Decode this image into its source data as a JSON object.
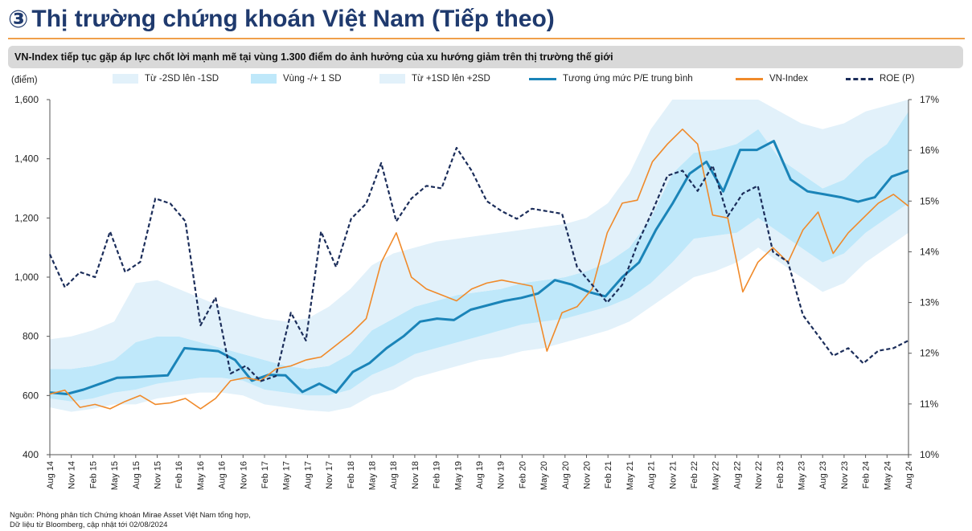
{
  "header": {
    "number": "③",
    "title": "Thị trường chứng khoán Việt Nam (Tiếp theo)",
    "subtitle": "VN-Index tiếp tục gặp áp lực chốt lời mạnh mẽ tại vùng 1.300 điểm do ảnh hưởng của xu hướng giảm trên thị trường thế giới"
  },
  "chart_data": {
    "type": "line",
    "unit_label": "(điểm)",
    "left_axis": {
      "range": [
        400,
        1600
      ],
      "ticks": [
        "1,600",
        "1,400",
        "1,200",
        "1,000",
        "800",
        "600",
        "400"
      ]
    },
    "right_axis": {
      "range": [
        10,
        17
      ],
      "ticks": [
        "17%",
        "16%",
        "15%",
        "14%",
        "13%",
        "12%",
        "11%",
        "10%"
      ]
    },
    "x_labels": [
      "Aug 14",
      "Nov 14",
      "Feb 15",
      "May 15",
      "Aug 15",
      "Nov 15",
      "Feb 16",
      "May 16",
      "Aug 16",
      "Nov 16",
      "Feb 17",
      "May 17",
      "Aug 17",
      "Nov 17",
      "Feb 18",
      "May 18",
      "Aug 18",
      "Nov 18",
      "Feb 19",
      "May 19",
      "Aug 19",
      "Nov 19",
      "Feb 20",
      "May 20",
      "Aug 20",
      "Nov 20",
      "Feb 21",
      "May 21",
      "Aug 21",
      "Nov 21",
      "Feb 22",
      "May 22",
      "Aug 22",
      "Nov 22",
      "Feb 23",
      "May 23",
      "Aug 23",
      "Nov 23",
      "Feb 24",
      "May 24",
      "Aug 24"
    ],
    "legend": [
      {
        "name": "Từ -2SD lên -1SD",
        "kind": "band",
        "color": "#e2f1fa"
      },
      {
        "name": "Vùng -/+ 1 SD",
        "kind": "band",
        "color": "#bfe8fa"
      },
      {
        "name": "Từ +1SD lên +2SD",
        "kind": "band",
        "color": "#e2f1fa"
      },
      {
        "name": "Tương ứng mức P/E trung bình",
        "kind": "line",
        "color": "#1a84b8"
      },
      {
        "name": "VN-Index",
        "kind": "line",
        "color": "#f08a2a"
      },
      {
        "name": "ROE (P)",
        "kind": "dashed",
        "color": "#1b2d5a"
      }
    ],
    "series": [
      {
        "name": "Tương ứng mức P/E trung bình",
        "axis": "left",
        "values": [
          610,
          605,
          620,
          640,
          660,
          662,
          665,
          668,
          760,
          755,
          750,
          720,
          650,
          670,
          668,
          612,
          640,
          610,
          680,
          710,
          760,
          800,
          850,
          860,
          855,
          890,
          905,
          920,
          930,
          945,
          990,
          975,
          950,
          935,
          1000,
          1050,
          1160,
          1250,
          1350,
          1390,
          1290,
          1430,
          1430,
          1460,
          1330,
          1290,
          1280,
          1270,
          1255,
          1270,
          1340,
          1360
        ]
      },
      {
        "name": "VN-Index",
        "axis": "left",
        "values": [
          605,
          618,
          560,
          570,
          555,
          580,
          600,
          570,
          575,
          590,
          555,
          590,
          650,
          660,
          650,
          690,
          700,
          720,
          730,
          770,
          810,
          860,
          1050,
          1150,
          1000,
          960,
          940,
          920,
          960,
          980,
          990,
          980,
          970,
          750,
          880,
          900,
          960,
          1150,
          1250,
          1260,
          1390,
          1450,
          1500,
          1450,
          1210,
          1200,
          950,
          1050,
          1100,
          1050,
          1160,
          1220,
          1080,
          1150,
          1200,
          1250,
          1280,
          1240
        ]
      },
      {
        "name": "ROE (P)",
        "axis": "right",
        "values": [
          13.95,
          13.3,
          13.6,
          13.5,
          14.4,
          13.6,
          13.8,
          15.05,
          14.95,
          14.6,
          12.55,
          13.1,
          11.6,
          11.75,
          11.45,
          11.55,
          12.8,
          12.25,
          14.4,
          13.7,
          14.65,
          14.95,
          15.75,
          14.6,
          15.05,
          15.3,
          15.25,
          16.05,
          15.6,
          15.0,
          14.8,
          14.65,
          14.85,
          14.8,
          14.75,
          13.7,
          13.35,
          13.0,
          13.35,
          14.15,
          14.8,
          15.5,
          15.6,
          15.2,
          15.7,
          14.7,
          15.15,
          15.3,
          14.0,
          13.8,
          12.75,
          12.35,
          11.95,
          12.1,
          11.8,
          12.05,
          12.1,
          12.25
        ]
      },
      {
        "name": "Từ -2SD lên -1SD",
        "axis": "left",
        "low": [
          560,
          545,
          555,
          570,
          570,
          590,
          600,
          610,
          610,
          600,
          570,
          560,
          550,
          545,
          560,
          600,
          620,
          660,
          680,
          700,
          720,
          730,
          750,
          760,
          780,
          800,
          820,
          850,
          900,
          950,
          1000,
          1020,
          1050,
          1100,
          1050,
          1000,
          950,
          980,
          1050,
          1100,
          1150
        ],
        "high": [
          590,
          580,
          590,
          610,
          620,
          640,
          650,
          660,
          660,
          650,
          620,
          610,
          600,
          600,
          620,
          670,
          700,
          740,
          760,
          780,
          800,
          820,
          840,
          850,
          860,
          880,
          900,
          930,
          980,
          1050,
          1130,
          1140,
          1150,
          1200,
          1150,
          1100,
          1050,
          1080,
          1150,
          1200,
          1250
        ]
      },
      {
        "name": "Vùng -/+ 1 SD",
        "axis": "left",
        "low": [
          590,
          580,
          590,
          610,
          620,
          640,
          650,
          660,
          660,
          650,
          620,
          610,
          600,
          600,
          620,
          670,
          700,
          740,
          760,
          780,
          800,
          820,
          840,
          850,
          860,
          880,
          900,
          930,
          980,
          1050,
          1130,
          1140,
          1150,
          1200,
          1150,
          1100,
          1050,
          1080,
          1150,
          1200,
          1250
        ],
        "high": [
          690,
          690,
          700,
          720,
          780,
          800,
          800,
          780,
          760,
          740,
          720,
          700,
          690,
          700,
          740,
          820,
          860,
          900,
          920,
          940,
          950,
          960,
          980,
          990,
          1000,
          1020,
          1050,
          1100,
          1200,
          1350,
          1420,
          1430,
          1450,
          1500,
          1400,
          1350,
          1300,
          1330,
          1400,
          1450,
          1560
        ]
      },
      {
        "name": "Từ +1SD lên +2SD",
        "axis": "left",
        "low": [
          690,
          690,
          700,
          720,
          780,
          800,
          800,
          780,
          760,
          740,
          720,
          700,
          690,
          700,
          740,
          820,
          860,
          900,
          920,
          940,
          950,
          960,
          980,
          990,
          1000,
          1020,
          1050,
          1100,
          1200,
          1350,
          1420,
          1430,
          1450,
          1500,
          1400,
          1350,
          1300,
          1330,
          1400,
          1450,
          1560
        ],
        "high": [
          790,
          800,
          820,
          850,
          980,
          990,
          960,
          930,
          900,
          880,
          860,
          850,
          860,
          900,
          960,
          1040,
          1080,
          1100,
          1120,
          1130,
          1140,
          1150,
          1160,
          1170,
          1180,
          1200,
          1250,
          1350,
          1500,
          1600,
          1600,
          1600,
          1600,
          1600,
          1560,
          1520,
          1500,
          1520,
          1560,
          1580,
          1600
        ]
      }
    ]
  },
  "footer": {
    "line1": "Nguồn: Phòng phân tích Chứng khoán Mirae Asset Việt Nam tổng hợp,",
    "line2": "Dữ liệu từ Bloomberg, cập nhật tới 02/08/2024"
  }
}
